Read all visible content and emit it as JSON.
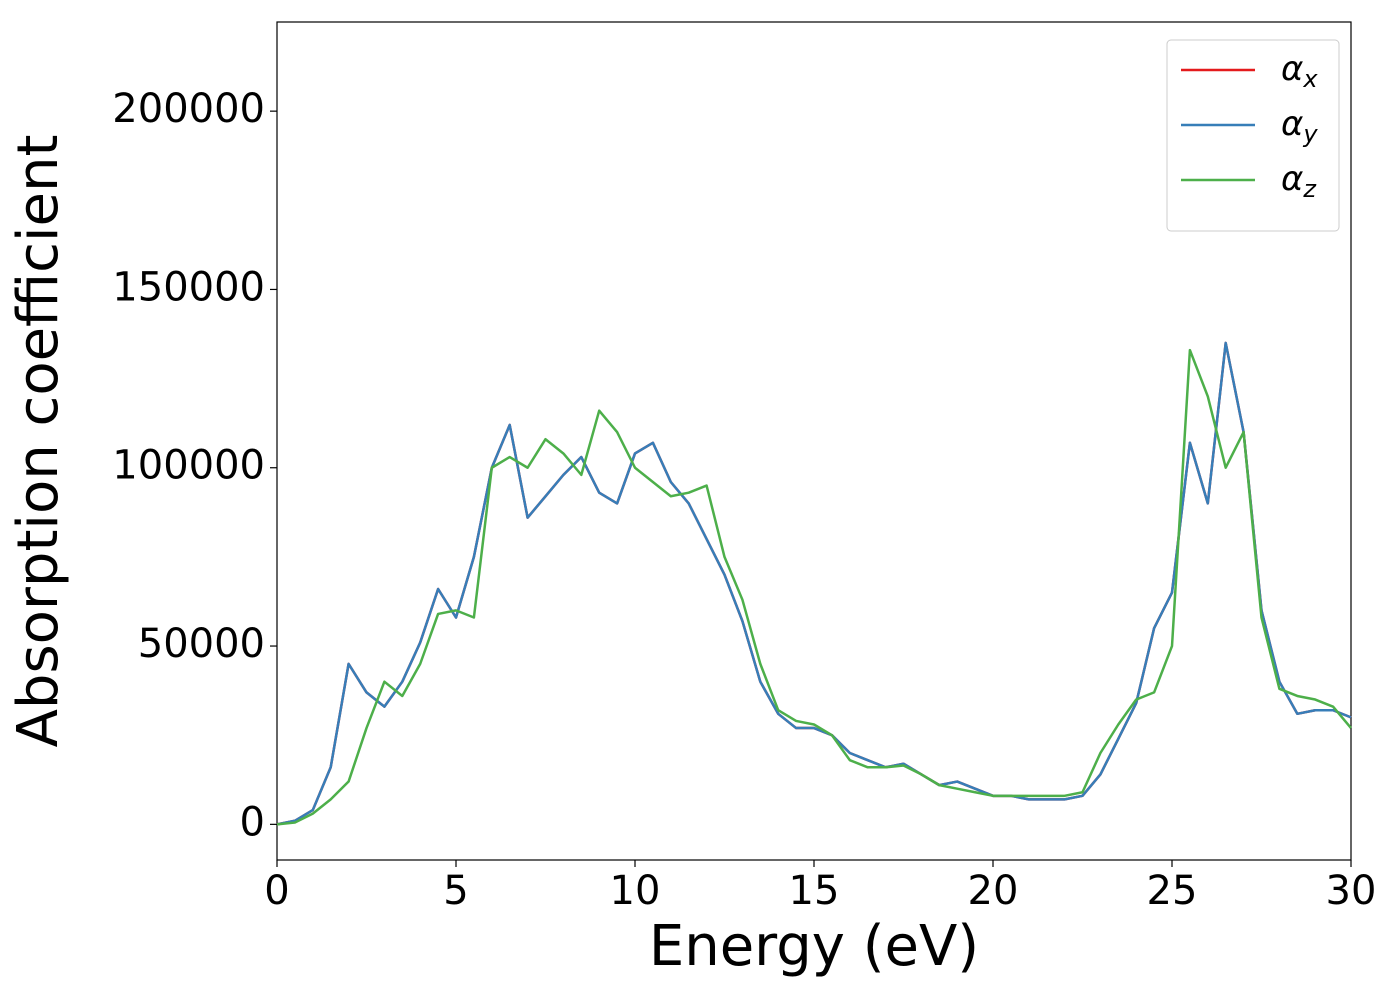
{
  "chart_data": {
    "type": "line",
    "xlabel": "Energy (eV)",
    "ylabel": "Absorption coefficient",
    "x": [
      0,
      0.5,
      1,
      1.5,
      2,
      2.5,
      3,
      3.5,
      4,
      4.5,
      5,
      5.5,
      6,
      6.5,
      7,
      7.5,
      8,
      8.5,
      9,
      9.5,
      10,
      10.5,
      11,
      11.5,
      12,
      12.5,
      13,
      13.5,
      14,
      14.5,
      15,
      15.5,
      16,
      16.5,
      17,
      17.5,
      18,
      18.5,
      19,
      19.5,
      20,
      20.5,
      21,
      21.5,
      22,
      22.5,
      23,
      23.5,
      24,
      24.5,
      25,
      25.5,
      26,
      26.5,
      27,
      27.5,
      28,
      28.5,
      29,
      29.5,
      30
    ],
    "series": [
      {
        "name": "αx",
        "color": "#e41a1c",
        "values": [
          0,
          1000,
          4000,
          16000,
          45000,
          37000,
          33000,
          40000,
          51000,
          66000,
          58000,
          75000,
          100000,
          112000,
          86000,
          92000,
          98000,
          103000,
          93000,
          90000,
          104000,
          107000,
          96000,
          90000,
          80000,
          70000,
          57000,
          40000,
          31000,
          27000,
          27000,
          25000,
          20000,
          18000,
          16000,
          17000,
          14000,
          11000,
          12000,
          10000,
          8000,
          8000,
          7000,
          7000,
          7000,
          8000,
          14000,
          24000,
          34000,
          55000,
          65000,
          107000,
          90000,
          135000,
          110000,
          60000,
          40000,
          31000,
          32000,
          32000,
          30000
        ]
      },
      {
        "name": "αy",
        "color": "#377eb8",
        "values": [
          0,
          1000,
          4000,
          16000,
          45000,
          37000,
          33000,
          40000,
          51000,
          66000,
          58000,
          75000,
          100000,
          112000,
          86000,
          92000,
          98000,
          103000,
          93000,
          90000,
          104000,
          107000,
          96000,
          90000,
          80000,
          70000,
          57000,
          40000,
          31000,
          27000,
          27000,
          25000,
          20000,
          18000,
          16000,
          17000,
          14000,
          11000,
          12000,
          10000,
          8000,
          8000,
          7000,
          7000,
          7000,
          8000,
          14000,
          24000,
          34000,
          55000,
          65000,
          107000,
          90000,
          135000,
          110000,
          60000,
          40000,
          31000,
          32000,
          32000,
          30000
        ]
      },
      {
        "name": "αz",
        "color": "#4daf4a",
        "values": [
          0,
          500,
          3000,
          7000,
          12000,
          27000,
          40000,
          36000,
          45000,
          59000,
          60000,
          58000,
          100000,
          103000,
          100000,
          108000,
          104000,
          98000,
          116000,
          110000,
          100000,
          96000,
          92000,
          93000,
          95000,
          75000,
          63000,
          45000,
          32000,
          29000,
          28000,
          25000,
          18000,
          16000,
          16000,
          16500,
          14000,
          11000,
          10000,
          9000,
          8000,
          8000,
          8000,
          8000,
          8000,
          9000,
          20000,
          28000,
          35000,
          37000,
          50000,
          133000,
          120000,
          100000,
          110000,
          58000,
          38000,
          36000,
          35000,
          33000,
          27000
        ]
      }
    ],
    "xlim": [
      0,
      30
    ],
    "xticks": [
      0,
      5,
      10,
      15,
      20,
      25,
      30
    ],
    "ylim": [
      -10000,
      225000
    ],
    "yticks": [
      0,
      50000,
      100000,
      150000,
      200000
    ],
    "legend": "upper right"
  }
}
